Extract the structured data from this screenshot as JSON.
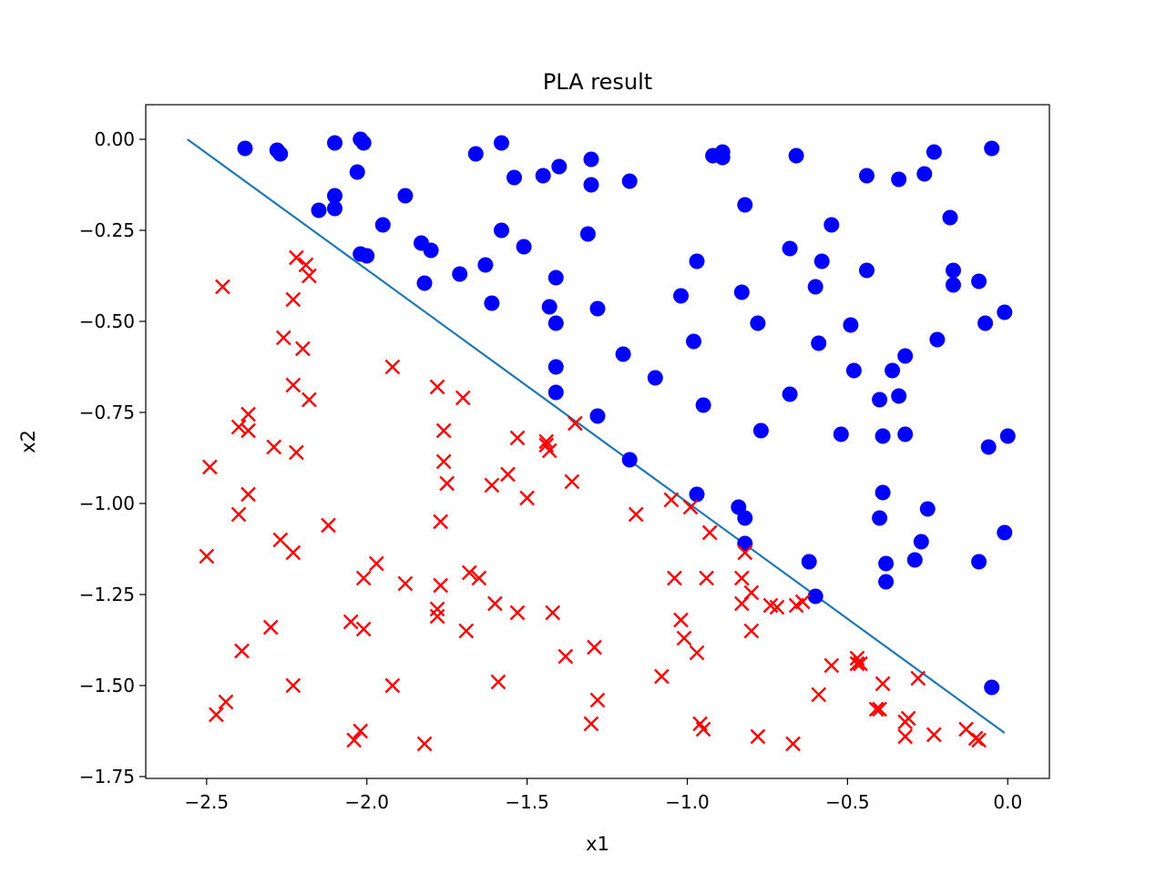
{
  "chart_data": {
    "type": "scatter",
    "title": "PLA result",
    "xlabel": "x1",
    "ylabel": "x2",
    "xlim": [
      -2.69,
      0.13
    ],
    "ylim": [
      -1.755,
      0.095
    ],
    "xticks": [
      {
        "v": -2.5,
        "label": "−2.5"
      },
      {
        "v": -2.0,
        "label": "−2.0"
      },
      {
        "v": -1.5,
        "label": "−1.5"
      },
      {
        "v": -1.0,
        "label": "−1.0"
      },
      {
        "v": -0.5,
        "label": "−0.5"
      },
      {
        "v": 0.0,
        "label": "0.0"
      }
    ],
    "yticks": [
      {
        "v": 0.0,
        "label": "0.00"
      },
      {
        "v": -0.25,
        "label": "−0.25"
      },
      {
        "v": -0.5,
        "label": "−0.50"
      },
      {
        "v": -0.75,
        "label": "−0.75"
      },
      {
        "v": -1.0,
        "label": "−1.00"
      },
      {
        "v": -1.25,
        "label": "−1.25"
      },
      {
        "v": -1.5,
        "label": "−1.50"
      },
      {
        "v": -1.75,
        "label": "−1.75"
      }
    ],
    "grid": false,
    "series": [
      {
        "marker": "circle",
        "color": "#0000ff",
        "points": [
          [
            -2.38,
            -0.025
          ],
          [
            -2.28,
            -0.03
          ],
          [
            -2.27,
            -0.04
          ],
          [
            -2.1,
            -0.01
          ],
          [
            -2.02,
            0.0
          ],
          [
            -2.01,
            -0.01
          ],
          [
            -2.03,
            -0.09
          ],
          [
            -2.1,
            -0.155
          ],
          [
            -2.15,
            -0.195
          ],
          [
            -2.1,
            -0.19
          ],
          [
            -2.02,
            -0.315
          ],
          [
            -2.0,
            -0.32
          ],
          [
            -1.95,
            -0.235
          ],
          [
            -1.88,
            -0.155
          ],
          [
            -1.83,
            -0.285
          ],
          [
            -1.8,
            -0.305
          ],
          [
            -1.82,
            -0.395
          ],
          [
            -1.71,
            -0.37
          ],
          [
            -1.66,
            -0.04
          ],
          [
            -1.58,
            -0.01
          ],
          [
            -1.54,
            -0.105
          ],
          [
            -1.45,
            -0.1
          ],
          [
            -1.4,
            -0.075
          ],
          [
            -1.3,
            -0.055
          ],
          [
            -1.3,
            -0.125
          ],
          [
            -1.18,
            -0.115
          ],
          [
            -1.63,
            -0.345
          ],
          [
            -1.58,
            -0.25
          ],
          [
            -1.51,
            -0.295
          ],
          [
            -1.61,
            -0.45
          ],
          [
            -1.41,
            -0.38
          ],
          [
            -1.43,
            -0.46
          ],
          [
            -1.41,
            -0.505
          ],
          [
            -1.41,
            -0.625
          ],
          [
            -1.41,
            -0.695
          ],
          [
            -1.31,
            -0.26
          ],
          [
            -1.28,
            -0.465
          ],
          [
            -1.28,
            -0.76
          ],
          [
            -1.2,
            -0.59
          ],
          [
            -1.18,
            -0.88
          ],
          [
            -1.1,
            -0.655
          ],
          [
            -1.02,
            -0.43
          ],
          [
            -0.98,
            -0.555
          ],
          [
            -0.97,
            -0.335
          ],
          [
            -0.97,
            -0.975
          ],
          [
            -0.95,
            -0.73
          ],
          [
            -0.92,
            -0.045
          ],
          [
            -0.89,
            -0.035
          ],
          [
            -0.89,
            -0.05
          ],
          [
            -0.82,
            -0.18
          ],
          [
            -0.83,
            -0.42
          ],
          [
            -0.78,
            -0.505
          ],
          [
            -0.77,
            -0.8
          ],
          [
            -0.84,
            -1.01
          ],
          [
            -0.82,
            -1.04
          ],
          [
            -0.82,
            -1.11
          ],
          [
            -0.66,
            -0.045
          ],
          [
            -0.68,
            -0.3
          ],
          [
            -0.68,
            -0.7
          ],
          [
            -0.62,
            -1.16
          ],
          [
            -0.6,
            -1.255
          ],
          [
            -0.6,
            -0.405
          ],
          [
            -0.59,
            -0.56
          ],
          [
            -0.58,
            -0.335
          ],
          [
            -0.55,
            -0.235
          ],
          [
            -0.52,
            -0.81
          ],
          [
            -0.49,
            -0.51
          ],
          [
            -0.48,
            -0.635
          ],
          [
            -0.44,
            -0.1
          ],
          [
            -0.44,
            -0.36
          ],
          [
            -0.4,
            -0.715
          ],
          [
            -0.39,
            -0.815
          ],
          [
            -0.39,
            -0.97
          ],
          [
            -0.4,
            -1.04
          ],
          [
            -0.38,
            -1.165
          ],
          [
            -0.38,
            -1.215
          ],
          [
            -0.36,
            -0.635
          ],
          [
            -0.34,
            -0.11
          ],
          [
            -0.34,
            -0.705
          ],
          [
            -0.32,
            -0.595
          ],
          [
            -0.32,
            -0.81
          ],
          [
            -0.29,
            -1.155
          ],
          [
            -0.27,
            -1.105
          ],
          [
            -0.25,
            -1.015
          ],
          [
            -0.26,
            -0.095
          ],
          [
            -0.23,
            -0.035
          ],
          [
            -0.22,
            -0.55
          ],
          [
            -0.18,
            -0.215
          ],
          [
            -0.17,
            -0.36
          ],
          [
            -0.17,
            -0.4
          ],
          [
            -0.09,
            -0.39
          ],
          [
            -0.09,
            -1.16
          ],
          [
            -0.07,
            -0.505
          ],
          [
            -0.06,
            -0.845
          ],
          [
            -0.05,
            -0.025
          ],
          [
            -0.05,
            -1.505
          ],
          [
            -0.01,
            -0.475
          ],
          [
            0.0,
            -0.815
          ],
          [
            -0.01,
            -1.08
          ]
        ]
      },
      {
        "marker": "x",
        "color": "#ff0000",
        "points": [
          [
            -2.45,
            -0.405
          ],
          [
            -2.49,
            -0.9
          ],
          [
            -2.5,
            -1.145
          ],
          [
            -2.47,
            -1.58
          ],
          [
            -2.44,
            -1.545
          ],
          [
            -2.39,
            -1.405
          ],
          [
            -2.4,
            -1.03
          ],
          [
            -2.4,
            -0.79
          ],
          [
            -2.37,
            -0.755
          ],
          [
            -2.37,
            -0.8
          ],
          [
            -2.37,
            -0.975
          ],
          [
            -2.29,
            -0.845
          ],
          [
            -2.3,
            -1.34
          ],
          [
            -2.26,
            -0.545
          ],
          [
            -2.27,
            -1.1
          ],
          [
            -2.23,
            -1.135
          ],
          [
            -2.23,
            -1.5
          ],
          [
            -2.23,
            -0.44
          ],
          [
            -2.23,
            -0.675
          ],
          [
            -2.22,
            -0.86
          ],
          [
            -2.22,
            -0.325
          ],
          [
            -2.19,
            -0.345
          ],
          [
            -2.2,
            -0.575
          ],
          [
            -2.18,
            -0.375
          ],
          [
            -2.18,
            -0.715
          ],
          [
            -2.12,
            -1.06
          ],
          [
            -2.05,
            -1.325
          ],
          [
            -2.04,
            -1.65
          ],
          [
            -2.02,
            -1.625
          ],
          [
            -2.01,
            -1.205
          ],
          [
            -2.01,
            -1.345
          ],
          [
            -1.97,
            -1.165
          ],
          [
            -1.92,
            -0.625
          ],
          [
            -1.92,
            -1.5
          ],
          [
            -1.88,
            -1.22
          ],
          [
            -1.82,
            -1.66
          ],
          [
            -1.78,
            -0.68
          ],
          [
            -1.78,
            -1.29
          ],
          [
            -1.78,
            -1.31
          ],
          [
            -1.77,
            -1.225
          ],
          [
            -1.77,
            -1.05
          ],
          [
            -1.76,
            -0.8
          ],
          [
            -1.76,
            -0.885
          ],
          [
            -1.75,
            -0.945
          ],
          [
            -1.7,
            -0.71
          ],
          [
            -1.69,
            -1.35
          ],
          [
            -1.68,
            -1.19
          ],
          [
            -1.65,
            -1.205
          ],
          [
            -1.61,
            -0.95
          ],
          [
            -1.6,
            -1.275
          ],
          [
            -1.59,
            -1.49
          ],
          [
            -1.56,
            -0.92
          ],
          [
            -1.53,
            -0.82
          ],
          [
            -1.53,
            -1.3
          ],
          [
            -1.5,
            -0.985
          ],
          [
            -1.44,
            -0.84
          ],
          [
            -1.44,
            -0.83
          ],
          [
            -1.43,
            -0.855
          ],
          [
            -1.42,
            -1.3
          ],
          [
            -1.38,
            -1.42
          ],
          [
            -1.36,
            -0.94
          ],
          [
            -1.35,
            -0.78
          ],
          [
            -1.3,
            -1.605
          ],
          [
            -1.29,
            -1.395
          ],
          [
            -1.28,
            -1.54
          ],
          [
            -1.16,
            -1.03
          ],
          [
            -1.08,
            -1.475
          ],
          [
            -1.05,
            -0.99
          ],
          [
            -1.04,
            -1.205
          ],
          [
            -1.02,
            -1.32
          ],
          [
            -1.01,
            -1.37
          ],
          [
            -0.99,
            -1.01
          ],
          [
            -0.97,
            -1.41
          ],
          [
            -0.96,
            -1.605
          ],
          [
            -0.95,
            -1.62
          ],
          [
            -0.94,
            -1.205
          ],
          [
            -0.93,
            -1.08
          ],
          [
            -0.83,
            -1.205
          ],
          [
            -0.83,
            -1.275
          ],
          [
            -0.82,
            -1.135
          ],
          [
            -0.8,
            -1.245
          ],
          [
            -0.8,
            -1.35
          ],
          [
            -0.78,
            -1.64
          ],
          [
            -0.74,
            -1.28
          ],
          [
            -0.72,
            -1.285
          ],
          [
            -0.67,
            -1.66
          ],
          [
            -0.66,
            -1.28
          ],
          [
            -0.64,
            -1.27
          ],
          [
            -0.59,
            -1.525
          ],
          [
            -0.55,
            -1.445
          ],
          [
            -0.47,
            -1.425
          ],
          [
            -0.47,
            -1.44
          ],
          [
            -0.46,
            -1.44
          ],
          [
            -0.41,
            -1.565
          ],
          [
            -0.4,
            -1.565
          ],
          [
            -0.39,
            -1.495
          ],
          [
            -0.32,
            -1.64
          ],
          [
            -0.32,
            -1.6
          ],
          [
            -0.31,
            -1.59
          ],
          [
            -0.28,
            -1.48
          ],
          [
            -0.23,
            -1.635
          ],
          [
            -0.13,
            -1.62
          ],
          [
            -0.1,
            -1.645
          ],
          [
            -0.09,
            -1.65
          ]
        ]
      },
      {
        "marker": "line",
        "color": "#1f77b4",
        "points": [
          [
            -2.56,
            0.0
          ],
          [
            -0.01,
            -1.63
          ]
        ]
      }
    ]
  }
}
